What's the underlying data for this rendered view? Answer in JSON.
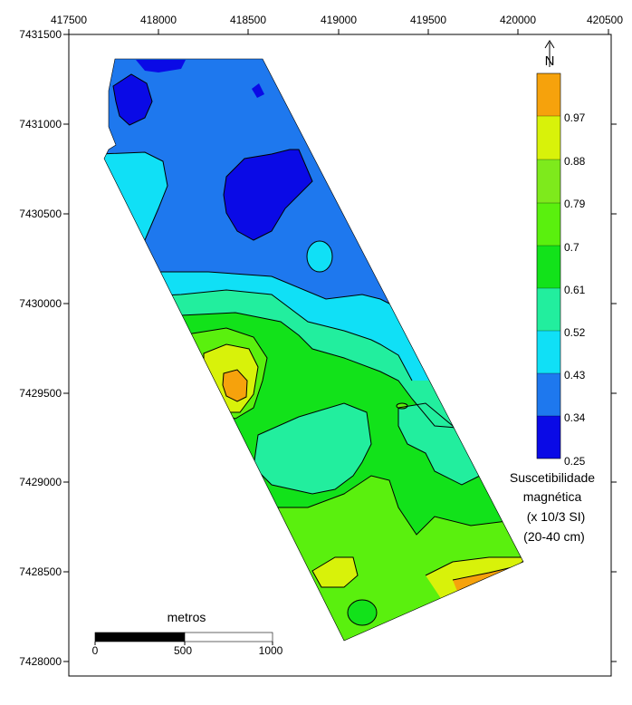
{
  "map": {
    "x_ticks": [
      "417500",
      "418000",
      "418500",
      "419000",
      "419500",
      "420000",
      "420500"
    ],
    "y_ticks": [
      "7431500",
      "7431000",
      "7430500",
      "7430000",
      "7429500",
      "7429000",
      "7428500",
      "7428000"
    ],
    "north_arrow": "N"
  },
  "legend": {
    "bins": [
      {
        "color": "#0a0ae6",
        "label": "0.25"
      },
      {
        "color": "#1e78ee",
        "label": "0.34"
      },
      {
        "color": "#10e0f6",
        "label": "0.43"
      },
      {
        "color": "#22ee9e",
        "label": "0.52"
      },
      {
        "color": "#12e21a",
        "label": "0.61"
      },
      {
        "color": "#5af00e",
        "label": "0.7"
      },
      {
        "color": "#7eea1c",
        "label": "0.79"
      },
      {
        "color": "#d8f20a",
        "label": "0.88"
      },
      {
        "color": "#f6a20c",
        "label": "0.97"
      },
      {
        "color": "#fa3c0a",
        "label": ""
      }
    ],
    "caption_lines": [
      "Suscetibilidade",
      "magnética",
      "(x 10/3 SI)",
      "(20-40 cm)"
    ]
  },
  "scale_bar": {
    "title": "metros",
    "labels": [
      "0",
      "500",
      "1000"
    ]
  }
}
